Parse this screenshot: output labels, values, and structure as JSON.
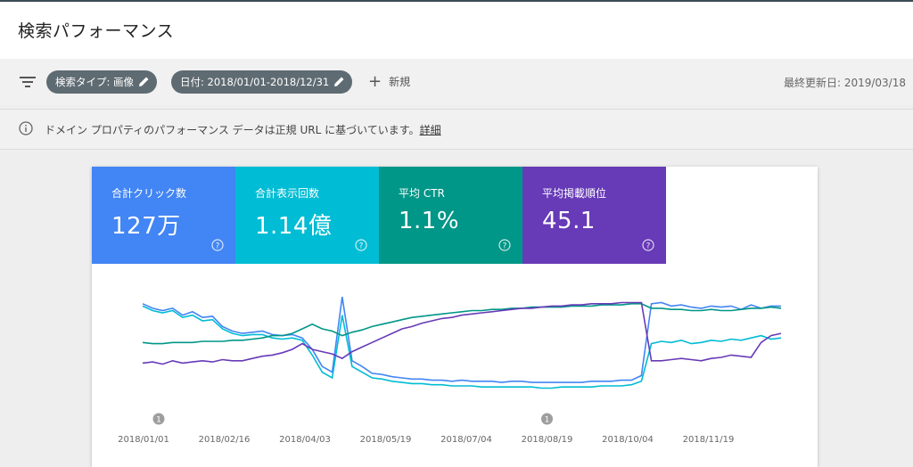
{
  "header": {
    "title": "検索パフォーマンス"
  },
  "filterbar": {
    "chips": [
      {
        "label": "検索タイプ: 画像"
      },
      {
        "label": "日付: 2018/01/01-2018/12/31"
      }
    ],
    "new_label": "新規",
    "last_updated": "最終更新日: 2019/03/18"
  },
  "notice": {
    "message": "ドメイン プロパティのパフォーマンス データは正規 URL に基づいています。",
    "link": "詳細"
  },
  "metrics": [
    {
      "label": "合計クリック数",
      "value": "127万",
      "color": "#4285f4"
    },
    {
      "label": "合計表示回数",
      "value": "1.14億",
      "color": "#00bcd4"
    },
    {
      "label": "平均 CTR",
      "value": "1.1%",
      "color": "#009688"
    },
    {
      "label": "平均掲載順位",
      "value": "45.1",
      "color": "#673ab7"
    }
  ],
  "chart_data": {
    "type": "line",
    "x_ticks": [
      "2018/01/01",
      "2018/02/16",
      "2018/04/03",
      "2018/05/19",
      "2018/07/04",
      "2018/08/19",
      "2018/10/04",
      "2018/11/19"
    ],
    "annotations": [
      {
        "label": "1",
        "date": "2018/01/01"
      },
      {
        "label": "1",
        "date": "2018/08/19"
      }
    ],
    "grid": false,
    "legend": "none",
    "series": [
      {
        "color": "#4285f4",
        "values": [
          90,
          86,
          84,
          86,
          80,
          83,
          78,
          79,
          70,
          66,
          64,
          65,
          66,
          63,
          62,
          63,
          60,
          50,
          35,
          30,
          96,
          40,
          35,
          29,
          28,
          26,
          25,
          24,
          24,
          23,
          23,
          22,
          23,
          22,
          22,
          22,
          21,
          22,
          22,
          21,
          21,
          21,
          21,
          21,
          21,
          22,
          22,
          22,
          23,
          23,
          27,
          90,
          91,
          88,
          89,
          87,
          86,
          88,
          87,
          88,
          85,
          89,
          86,
          88,
          88
        ]
      },
      {
        "color": "#00bcd4",
        "values": [
          88,
          84,
          82,
          84,
          78,
          80,
          75,
          76,
          68,
          64,
          62,
          63,
          63,
          60,
          59,
          60,
          58,
          45,
          30,
          25,
          80,
          35,
          30,
          25,
          24,
          22,
          21,
          20,
          20,
          19,
          19,
          18,
          18,
          18,
          17,
          17,
          17,
          17,
          17,
          17,
          16,
          16,
          17,
          17,
          17,
          17,
          18,
          18,
          18,
          19,
          22,
          55,
          57,
          56,
          58,
          55,
          56,
          58,
          57,
          59,
          58,
          60,
          62,
          59,
          60
        ]
      },
      {
        "color": "#009688",
        "values": [
          56,
          55,
          55,
          56,
          56,
          56,
          57,
          57,
          57,
          58,
          58,
          59,
          60,
          62,
          62,
          64,
          68,
          72,
          68,
          66,
          62,
          65,
          67,
          70,
          72,
          74,
          76,
          78,
          79,
          80,
          81,
          82,
          83,
          84,
          84,
          85,
          85,
          86,
          86,
          87,
          87,
          87,
          87,
          88,
          88,
          88,
          89,
          89,
          89,
          90,
          90,
          86,
          86,
          85,
          85,
          84,
          84,
          85,
          84,
          84,
          85,
          86,
          86,
          87,
          86
        ]
      },
      {
        "color": "#673ab7",
        "values": [
          38,
          39,
          37,
          40,
          38,
          39,
          40,
          39,
          41,
          40,
          40,
          42,
          44,
          45,
          47,
          50,
          55,
          50,
          48,
          46,
          42,
          48,
          52,
          56,
          60,
          64,
          68,
          70,
          73,
          75,
          77,
          78,
          80,
          81,
          82,
          83,
          84,
          85,
          86,
          86,
          87,
          88,
          88,
          89,
          89,
          90,
          90,
          90,
          91,
          91,
          91,
          40,
          40,
          41,
          42,
          41,
          40,
          42,
          43,
          45,
          44,
          43,
          56,
          62,
          64
        ]
      }
    ],
    "ylim": [
      0,
      100
    ]
  }
}
